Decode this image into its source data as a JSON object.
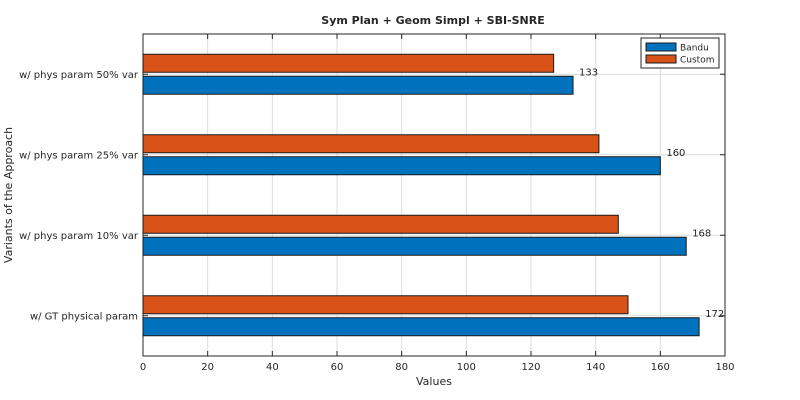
{
  "chart_data": {
    "type": "bar",
    "orientation": "horizontal",
    "title": "Sym Plan + Geom Simpl + SBI-SNRE",
    "xlabel": "Values",
    "ylabel": "Variants of the Approach",
    "categories": [
      "w/ GT physical param",
      "w/ phys param 10% var",
      "w/ phys param 25% var",
      "w/ phys param 50% var"
    ],
    "series": [
      {
        "name": "Bandu",
        "values": [
          172,
          168,
          160,
          133
        ],
        "color": "#0072BD",
        "data_labels": [
          "172",
          "168",
          "160",
          "133"
        ]
      },
      {
        "name": "Custom",
        "values": [
          150,
          147,
          141,
          127
        ],
        "color": "#D95319"
      }
    ],
    "xlim": [
      0,
      180
    ],
    "xticks": [
      0,
      20,
      40,
      60,
      80,
      100,
      120,
      140,
      160,
      180
    ],
    "xtick_labels": [
      "0",
      "20",
      "40",
      "60",
      "80",
      "100",
      "120",
      "140",
      "160",
      "180"
    ],
    "grid": true,
    "legend_position": "top-right"
  }
}
